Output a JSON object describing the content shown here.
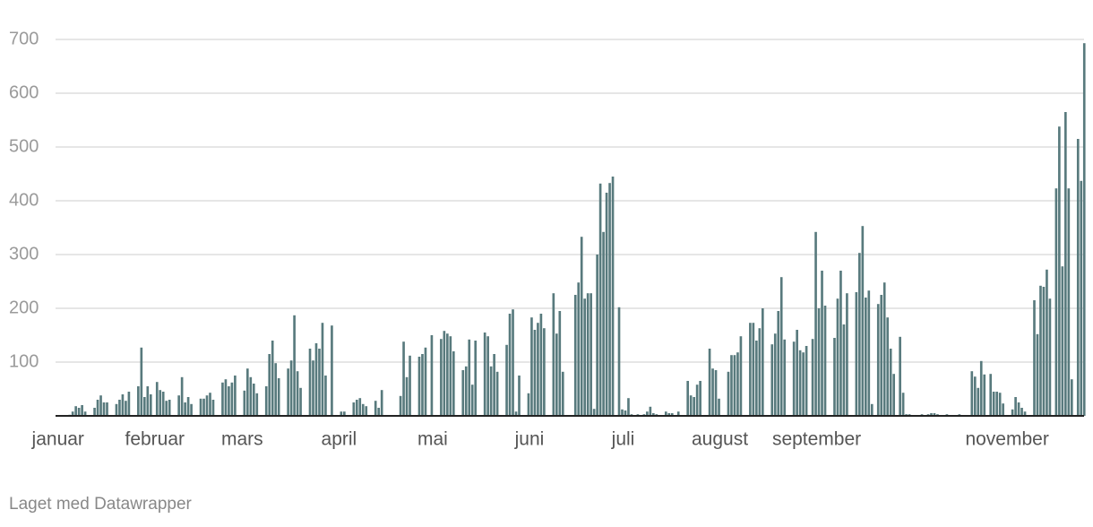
{
  "chart_data": {
    "type": "bar",
    "footer": "Laget med Datawrapper",
    "color": "#587a7d",
    "ylim": [
      0,
      700
    ],
    "yticks": [
      100,
      200,
      300,
      400,
      500,
      600,
      700
    ],
    "grid": true,
    "categories": [
      "januar",
      null,
      null,
      null,
      null,
      null,
      null,
      null,
      null,
      null,
      null,
      null,
      null,
      null,
      null,
      null,
      null,
      null,
      null,
      null,
      null,
      null,
      null,
      null,
      null,
      null,
      null,
      null,
      null,
      null,
      null,
      "februar",
      null,
      null,
      null,
      null,
      null,
      null,
      null,
      null,
      null,
      null,
      null,
      null,
      null,
      null,
      null,
      null,
      null,
      null,
      null,
      null,
      null,
      null,
      null,
      null,
      null,
      null,
      null,
      "mars",
      null,
      null,
      null,
      null,
      null,
      null,
      null,
      null,
      null,
      null,
      null,
      null,
      null,
      null,
      null,
      null,
      null,
      null,
      null,
      null,
      null,
      null,
      null,
      null,
      null,
      null,
      null,
      null,
      null,
      null,
      "april",
      null,
      null,
      null,
      null,
      null,
      null,
      null,
      null,
      null,
      null,
      null,
      null,
      null,
      null,
      null,
      null,
      null,
      null,
      null,
      null,
      null,
      null,
      null,
      null,
      null,
      null,
      null,
      null,
      null,
      "mai",
      null,
      null,
      null,
      null,
      null,
      null,
      null,
      null,
      null,
      null,
      null,
      null,
      null,
      null,
      null,
      null,
      null,
      null,
      null,
      null,
      null,
      null,
      null,
      null,
      null,
      null,
      null,
      null,
      null,
      null,
      "juni",
      null,
      null,
      null,
      null,
      null,
      null,
      null,
      null,
      null,
      null,
      null,
      null,
      null,
      null,
      null,
      null,
      null,
      null,
      null,
      null,
      null,
      null,
      null,
      null,
      null,
      null,
      null,
      null,
      null,
      "juli",
      null,
      null,
      null,
      null,
      null,
      null,
      null,
      null,
      null,
      null,
      null,
      null,
      null,
      null,
      null,
      null,
      null,
      null,
      null,
      null,
      null,
      null,
      null,
      null,
      null,
      null,
      null,
      null,
      null,
      null,
      "august",
      null,
      null,
      null,
      null,
      null,
      null,
      null,
      null,
      null,
      null,
      null,
      null,
      null,
      null,
      null,
      null,
      null,
      null,
      null,
      null,
      null,
      null,
      null,
      null,
      null,
      null,
      null,
      null,
      null,
      null,
      "september",
      null,
      null,
      null,
      null,
      null,
      null,
      null,
      null,
      null,
      null,
      null,
      null,
      null,
      null,
      null,
      null,
      null,
      null,
      null,
      null,
      null,
      null,
      null,
      null,
      null,
      null,
      null,
      null,
      null,
      null,
      null,
      null,
      null,
      null,
      null,
      null,
      null,
      null,
      null,
      null,
      null,
      null,
      null,
      null,
      null,
      null,
      null,
      null,
      null,
      null,
      null,
      null,
      null,
      null,
      null,
      null,
      null,
      null,
      null,
      null,
      "november",
      null,
      null,
      null,
      null,
      null,
      null,
      null,
      null,
      null,
      null,
      null,
      null,
      null,
      null,
      null,
      null,
      null,
      null,
      null,
      null,
      null,
      null,
      null,
      null,
      null
    ],
    "values": [
      0,
      0,
      0,
      0,
      2,
      8,
      18,
      15,
      20,
      8,
      0,
      0,
      15,
      30,
      38,
      25,
      25,
      0,
      0,
      22,
      30,
      40,
      28,
      45,
      0,
      0,
      55,
      127,
      35,
      55,
      40,
      0,
      63,
      48,
      45,
      28,
      30,
      0,
      0,
      38,
      72,
      25,
      35,
      22,
      0,
      0,
      32,
      32,
      38,
      43,
      30,
      0,
      0,
      62,
      68,
      55,
      62,
      75,
      0,
      0,
      47,
      88,
      72,
      60,
      42,
      0,
      0,
      55,
      115,
      140,
      98,
      70,
      0,
      0,
      88,
      103,
      187,
      83,
      52,
      0,
      0,
      125,
      103,
      135,
      125,
      173,
      75,
      0,
      168,
      0,
      0,
      8,
      8,
      0,
      0,
      25,
      30,
      33,
      22,
      18,
      0,
      0,
      28,
      15,
      48,
      0,
      0,
      0,
      0,
      0,
      37,
      138,
      72,
      112,
      0,
      0,
      110,
      115,
      127,
      0,
      150,
      0,
      0,
      143,
      158,
      153,
      148,
      120,
      0,
      0,
      85,
      92,
      142,
      58,
      140,
      0,
      0,
      155,
      148,
      92,
      115,
      82,
      0,
      0,
      132,
      190,
      198,
      8,
      75,
      0,
      0,
      42,
      183,
      160,
      173,
      190,
      163,
      0,
      0,
      228,
      153,
      195,
      82,
      0,
      0,
      0,
      225,
      248,
      333,
      218,
      228,
      228,
      13,
      300,
      432,
      342,
      415,
      433,
      445,
      0,
      202,
      12,
      10,
      33,
      3,
      0,
      3,
      0,
      3,
      8,
      17,
      5,
      3,
      0,
      0,
      8,
      5,
      5,
      0,
      8,
      0,
      0,
      65,
      38,
      35,
      58,
      65,
      0,
      0,
      125,
      88,
      85,
      32,
      0,
      0,
      82,
      113,
      113,
      118,
      148,
      0,
      0,
      173,
      173,
      140,
      163,
      200,
      0,
      0,
      133,
      153,
      195,
      258,
      142,
      0,
      0,
      138,
      160,
      122,
      118,
      130,
      0,
      143,
      342,
      200,
      270,
      205,
      0,
      0,
      145,
      218,
      270,
      170,
      228,
      0,
      0,
      230,
      303,
      353,
      220,
      233,
      22,
      0,
      208,
      225,
      248,
      183,
      125,
      78,
      0,
      147,
      43,
      3,
      3,
      0,
      0,
      0,
      3,
      0,
      3,
      5,
      5,
      3,
      0,
      0,
      3,
      0,
      0,
      0,
      3,
      0,
      0,
      0,
      83,
      73,
      52,
      102,
      77,
      0,
      78,
      45,
      45,
      43,
      23,
      0,
      0,
      12,
      35,
      25,
      15,
      8,
      0,
      0,
      215,
      152,
      242,
      240,
      272,
      218,
      0,
      423,
      538,
      278,
      565,
      423,
      68,
      0,
      515,
      437,
      693
    ]
  }
}
